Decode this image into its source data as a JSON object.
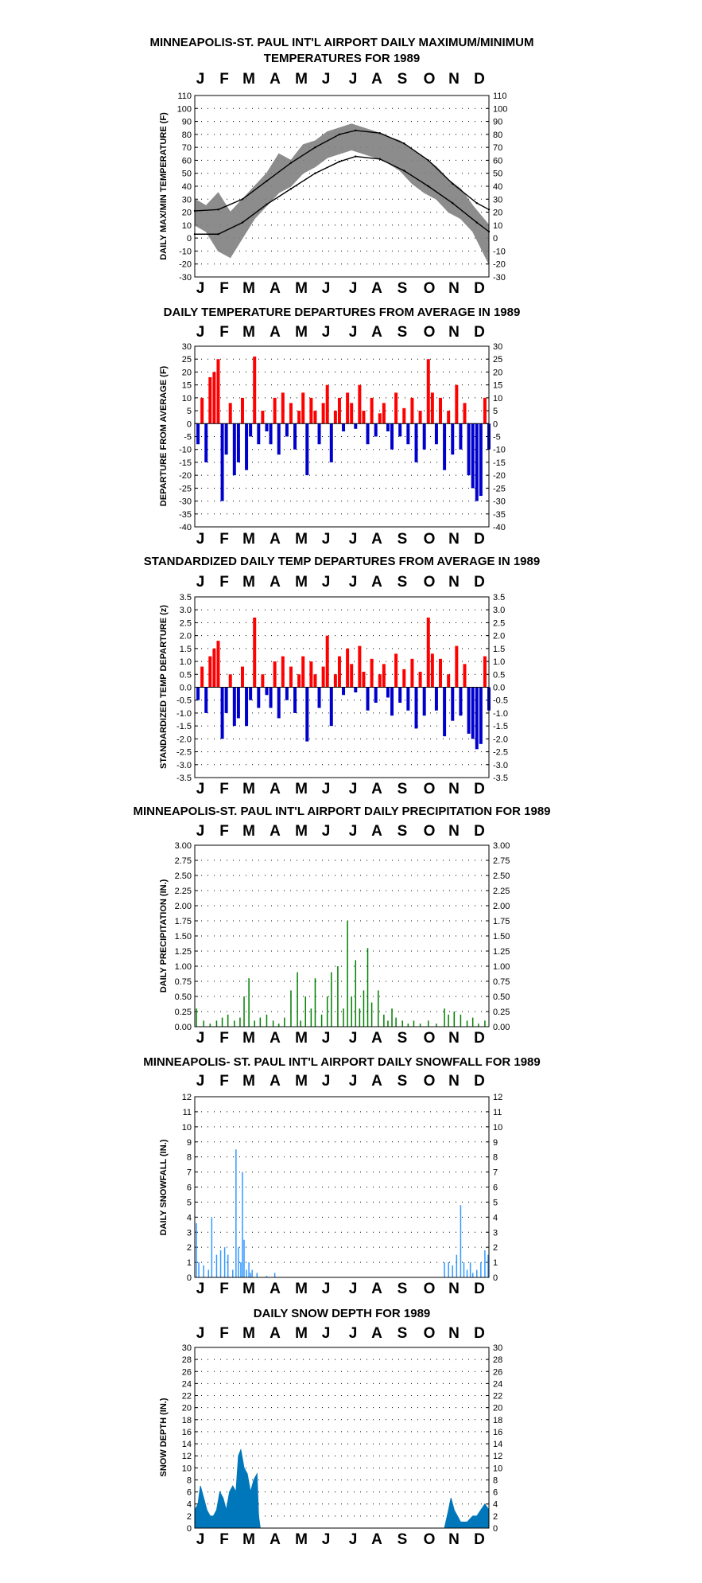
{
  "months": [
    "J",
    "F",
    "M",
    "A",
    "M",
    "J",
    "J",
    "A",
    "S",
    "O",
    "N",
    "D"
  ],
  "colors": {
    "gray": "#808080",
    "red": "#ff0000",
    "blue": "#0000cc",
    "green": "#008000",
    "lightblue": "#3399ff",
    "steelblue": "#0077bb",
    "normal_line": "#000000"
  },
  "chart_data": [
    {
      "id": "temps",
      "type": "area",
      "title_lines": [
        "MINNEAPOLIS-ST. PAUL INT'L AIRPORT DAILY MAXIMUM/MINIMUM",
        "TEMPERATURES FOR 1989"
      ],
      "ylabel": "DAILY MAX/MIN TEMPERATURE (F)",
      "ylim": [
        -30,
        110
      ],
      "yticks": [
        -30,
        -20,
        -10,
        0,
        10,
        20,
        30,
        40,
        50,
        60,
        70,
        80,
        90,
        100,
        110
      ],
      "grid": true,
      "series": [
        {
          "role": "daily_max",
          "color": "gray",
          "x_day": [
            1,
            15,
            30,
            45,
            60,
            75,
            90,
            105,
            120,
            135,
            150,
            165,
            180,
            195,
            210,
            225,
            240,
            255,
            270,
            285,
            300,
            315,
            330,
            345,
            365
          ],
          "values": [
            30,
            25,
            35,
            20,
            30,
            40,
            50,
            65,
            60,
            72,
            75,
            82,
            85,
            88,
            85,
            82,
            78,
            75,
            68,
            62,
            55,
            45,
            38,
            25,
            10
          ]
        },
        {
          "role": "daily_min",
          "color": "gray",
          "x_day": [
            1,
            15,
            30,
            45,
            60,
            75,
            90,
            105,
            120,
            135,
            150,
            165,
            180,
            195,
            210,
            225,
            240,
            255,
            270,
            285,
            300,
            315,
            330,
            345,
            365
          ],
          "values": [
            10,
            5,
            -10,
            -15,
            0,
            15,
            25,
            35,
            40,
            50,
            55,
            62,
            65,
            68,
            65,
            62,
            58,
            52,
            42,
            35,
            30,
            20,
            15,
            5,
            -20
          ]
        },
        {
          "role": "normal_max",
          "color": "normal_line",
          "x_day": [
            1,
            30,
            60,
            90,
            120,
            150,
            180,
            200,
            230,
            260,
            290,
            320,
            350,
            365
          ],
          "values": [
            21,
            22,
            30,
            44,
            58,
            70,
            80,
            83,
            81,
            73,
            60,
            42,
            27,
            22
          ]
        },
        {
          "role": "normal_min",
          "color": "normal_line",
          "x_day": [
            1,
            30,
            60,
            90,
            120,
            150,
            180,
            200,
            230,
            260,
            290,
            320,
            350,
            365
          ],
          "values": [
            3,
            3,
            12,
            26,
            38,
            50,
            59,
            63,
            61,
            52,
            40,
            27,
            12,
            5
          ]
        }
      ]
    },
    {
      "id": "departures",
      "type": "bar",
      "title_lines": [
        "DAILY TEMPERATURE DEPARTURES FROM AVERAGE IN 1989"
      ],
      "ylabel": "DEPARTURE FROM AVERAGE (F)",
      "ylim": [
        -40,
        30
      ],
      "yticks": [
        -40,
        -35,
        -30,
        -25,
        -20,
        -15,
        -10,
        -5,
        0,
        5,
        10,
        15,
        20,
        25,
        30
      ],
      "grid": true,
      "x_day": [
        5,
        10,
        15,
        20,
        25,
        30,
        35,
        40,
        45,
        50,
        55,
        60,
        65,
        70,
        75,
        80,
        85,
        90,
        95,
        100,
        105,
        110,
        115,
        120,
        125,
        130,
        135,
        140,
        145,
        150,
        155,
        160,
        165,
        170,
        175,
        180,
        185,
        190,
        195,
        200,
        205,
        210,
        215,
        220,
        225,
        230,
        235,
        240,
        245,
        250,
        255,
        260,
        265,
        270,
        275,
        280,
        285,
        290,
        295,
        300,
        305,
        310,
        315,
        320,
        325,
        330,
        335,
        340,
        345,
        350,
        355,
        360,
        365
      ],
      "values": [
        -8,
        10,
        -15,
        18,
        20,
        25,
        -30,
        -12,
        8,
        -20,
        -15,
        10,
        -18,
        -5,
        26,
        -8,
        5,
        -3,
        -8,
        10,
        -12,
        12,
        -5,
        8,
        -10,
        5,
        12,
        -20,
        10,
        5,
        -8,
        8,
        15,
        -15,
        5,
        10,
        -3,
        12,
        8,
        -2,
        15,
        5,
        -8,
        10,
        -5,
        4,
        8,
        -3,
        -10,
        12,
        -5,
        6,
        -8,
        10,
        -15,
        5,
        -10,
        25,
        12,
        -8,
        10,
        -18,
        5,
        -12,
        15,
        -10,
        8,
        -20,
        -25,
        -30,
        -28,
        10,
        -10
      ]
    },
    {
      "id": "standardized",
      "type": "bar",
      "title_lines": [
        "STANDARDIZED DAILY TEMP DEPARTURES FROM AVERAGE IN 1989"
      ],
      "ylabel": "STANDARDIZED TEMP DEPARTURE (z)",
      "ylim": [
        -3.5,
        3.5
      ],
      "yticks": [
        -3.5,
        -3.0,
        -2.5,
        -2.0,
        -1.5,
        -1.0,
        -0.5,
        0.0,
        0.5,
        1.0,
        1.5,
        2.0,
        2.5,
        3.0,
        3.5
      ],
      "grid": true,
      "x_day": [
        5,
        10,
        15,
        20,
        25,
        30,
        35,
        40,
        45,
        50,
        55,
        60,
        65,
        70,
        75,
        80,
        85,
        90,
        95,
        100,
        105,
        110,
        115,
        120,
        125,
        130,
        135,
        140,
        145,
        150,
        155,
        160,
        165,
        170,
        175,
        180,
        185,
        190,
        195,
        200,
        205,
        210,
        215,
        220,
        225,
        230,
        235,
        240,
        245,
        250,
        255,
        260,
        265,
        270,
        275,
        280,
        285,
        290,
        295,
        300,
        305,
        310,
        315,
        320,
        325,
        330,
        335,
        340,
        345,
        350,
        355,
        360,
        365
      ],
      "values": [
        -0.5,
        0.8,
        -1.0,
        1.2,
        1.5,
        1.8,
        -2.0,
        -1.0,
        0.5,
        -1.5,
        -1.2,
        0.8,
        -1.5,
        -0.5,
        2.7,
        -0.8,
        0.5,
        -0.3,
        -0.8,
        1.0,
        -1.2,
        1.2,
        -0.5,
        0.8,
        -1.0,
        0.5,
        1.2,
        -2.1,
        1.0,
        0.5,
        -0.8,
        0.8,
        2.0,
        -1.5,
        0.5,
        1.2,
        -0.3,
        1.5,
        0.9,
        -0.2,
        1.6,
        0.6,
        -0.9,
        1.1,
        -0.6,
        0.5,
        0.9,
        -0.4,
        -1.1,
        1.3,
        -0.6,
        0.7,
        -0.9,
        1.1,
        -1.6,
        0.6,
        -1.1,
        2.7,
        1.3,
        -0.9,
        1.1,
        -1.9,
        0.5,
        -1.3,
        1.6,
        -1.1,
        0.9,
        -1.8,
        -2.0,
        -2.4,
        -2.2,
        1.2,
        -0.9
      ]
    },
    {
      "id": "precip",
      "type": "bar",
      "title_lines": [
        "MINNEAPOLIS-ST. PAUL INT'L AIRPORT DAILY PRECIPITATION FOR 1989"
      ],
      "ylabel": "DAILY PRECIPITATION (IN.)",
      "ylim": [
        0,
        3.0
      ],
      "yticks": [
        0.0,
        0.25,
        0.5,
        0.75,
        1.0,
        1.25,
        1.5,
        1.75,
        2.0,
        2.25,
        2.5,
        2.75,
        3.0
      ],
      "grid": true,
      "x_day": [
        3,
        12,
        20,
        28,
        35,
        42,
        50,
        57,
        62,
        68,
        75,
        82,
        90,
        98,
        105,
        112,
        120,
        128,
        132,
        138,
        145,
        150,
        158,
        165,
        170,
        178,
        185,
        190,
        195,
        200,
        205,
        210,
        215,
        220,
        228,
        235,
        240,
        245,
        250,
        258,
        265,
        272,
        280,
        290,
        300,
        310,
        315,
        322,
        330,
        338,
        345,
        352,
        360
      ],
      "values": [
        0.3,
        0.1,
        0.05,
        0.1,
        0.15,
        0.2,
        0.1,
        0.15,
        0.5,
        0.8,
        0.1,
        0.15,
        0.2,
        0.1,
        0.05,
        0.15,
        0.6,
        0.9,
        0.1,
        0.5,
        0.3,
        0.8,
        0.2,
        0.5,
        0.9,
        1.0,
        0.3,
        1.75,
        0.5,
        1.1,
        0.3,
        0.6,
        1.3,
        0.4,
        0.6,
        0.2,
        0.1,
        0.3,
        0.15,
        0.1,
        0.05,
        0.1,
        0.05,
        0.1,
        0.05,
        0.3,
        0.2,
        0.25,
        0.2,
        0.1,
        0.15,
        0.05,
        0.1
      ]
    },
    {
      "id": "snowfall",
      "type": "bar",
      "title_lines": [
        "MINNEAPOLIS- ST. PAUL INT'L AIRPORT DAILY SNOWFALL FOR 1989"
      ],
      "ylabel": "DAILY SNOWFALL (IN.)",
      "ylim": [
        0,
        12
      ],
      "yticks": [
        0,
        1,
        2,
        3,
        4,
        5,
        6,
        7,
        8,
        9,
        10,
        11,
        12
      ],
      "grid": true,
      "x_day": [
        3,
        6,
        12,
        18,
        22,
        28,
        33,
        38,
        42,
        48,
        52,
        55,
        58,
        60,
        62,
        65,
        68,
        70,
        72,
        78,
        90,
        100,
        310,
        315,
        320,
        325,
        330,
        334,
        338,
        342,
        345,
        350,
        355,
        360,
        364
      ],
      "values": [
        3.6,
        1.0,
        0.8,
        0.5,
        4.0,
        1.5,
        1.8,
        2.0,
        1.5,
        0.5,
        8.5,
        2.0,
        1.0,
        7.0,
        2.5,
        0.5,
        1.0,
        0.3,
        0.5,
        0.3,
        0.1,
        0.3,
        1.0,
        1.0,
        0.8,
        1.5,
        4.8,
        1.0,
        0.5,
        1.0,
        0.3,
        0.5,
        1.0,
        1.8,
        1.5
      ]
    },
    {
      "id": "snowdepth",
      "type": "area",
      "title_lines": [
        "DAILY SNOW DEPTH FOR 1989"
      ],
      "ylabel": "SNOW DEPTH (IN.)",
      "ylim": [
        0,
        30
      ],
      "yticks": [
        0,
        2,
        4,
        6,
        8,
        10,
        12,
        14,
        16,
        18,
        20,
        22,
        24,
        26,
        28,
        30
      ],
      "grid": true,
      "series": [
        {
          "color": "steelblue",
          "x_day": [
            1,
            5,
            8,
            12,
            16,
            20,
            24,
            28,
            32,
            36,
            40,
            44,
            48,
            52,
            55,
            58,
            62,
            66,
            70,
            74,
            78,
            80,
            82,
            310,
            315,
            318,
            322,
            326,
            330,
            334,
            338,
            345,
            350,
            355,
            360,
            365
          ],
          "values": [
            3,
            4,
            7,
            5,
            3,
            2,
            2,
            3,
            6,
            5,
            3,
            6,
            7,
            6,
            12,
            13,
            10,
            9,
            6,
            8,
            9,
            2,
            0,
            0,
            3,
            5,
            3,
            2,
            1,
            1,
            1,
            2,
            2,
            3,
            4,
            3
          ]
        }
      ]
    }
  ]
}
